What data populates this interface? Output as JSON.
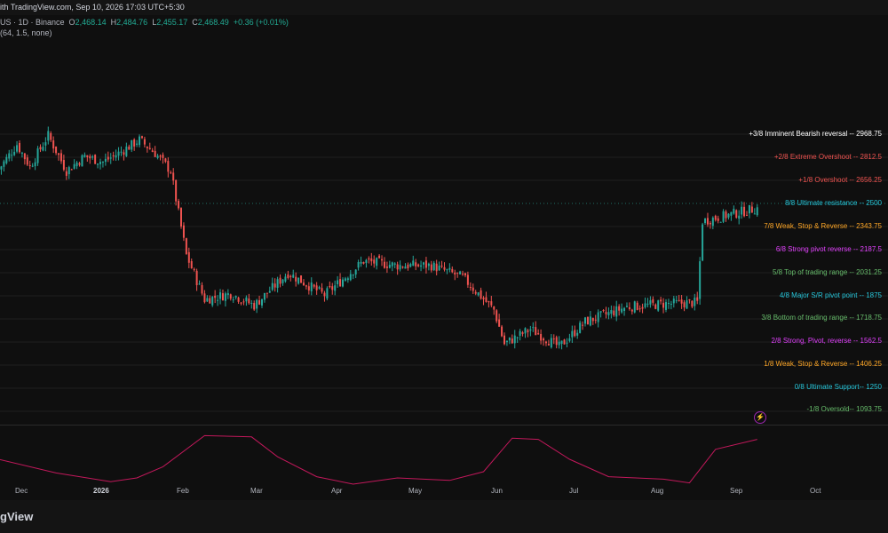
{
  "header": {
    "caption": "ith TradingView.com, Sep 10, 2026 17:03 UTC+5:30"
  },
  "legend": {
    "symbol": "US · 1D · Binance",
    "o_label": "O",
    "o_value": "2,468.14",
    "h_label": "H",
    "h_value": "2,484.76",
    "l_label": "L",
    "l_value": "2,455.17",
    "c_label": "C",
    "c_value": "2,468.49",
    "change": "+0.36 (+0.01%)",
    "indicator": "(64, 1.5, none)"
  },
  "footer": {
    "brand": "gView"
  },
  "levels": [
    {
      "text": "+3/8 Imminent Bearish reversal -- 2968.75",
      "color": "#ffffff"
    },
    {
      "text": "+2/8 Extreme Overshoot -- 2812.5",
      "color": "#ef5350"
    },
    {
      "text": "+1/8 Overshoot -- 2656.25",
      "color": "#ef5350"
    },
    {
      "text": "8/8 Ultimate resistance -- 2500",
      "color": "#26c6da"
    },
    {
      "text": "7/8 Weak, Stop & Reverse -- 2343.75",
      "color": "#ffa726"
    },
    {
      "text": "6/8 Strong pivot reverse -- 2187.5",
      "color": "#e040fb"
    },
    {
      "text": "5/8 Top of trading range -- 2031.25",
      "color": "#66bb6a"
    },
    {
      "text": "4/8 Major S/R pivot point -- 1875",
      "color": "#26c6da"
    },
    {
      "text": "3/8 Bottom of trading range -- 1718.75",
      "color": "#66bb6a"
    },
    {
      "text": "2/8 Strong, Pivot, reverse -- 1562.5",
      "color": "#e040fb"
    },
    {
      "text": "1/8 Weak, Stop & Reverse -- 1406.25",
      "color": "#ffa726"
    },
    {
      "text": "0/8 Ultimate Support-- 1250",
      "color": "#26c6da"
    },
    {
      "text": "-1/8 Oversold-- 1093.75",
      "color": "#66bb6a"
    }
  ],
  "x_axis": {
    "labels": [
      "Dec",
      "2026",
      "Feb",
      "Mar",
      "Apr",
      "May",
      "Jun",
      "Jul",
      "Aug",
      "Sep",
      "Oct"
    ]
  },
  "colors": {
    "up": "#26a69a",
    "down": "#ef5350",
    "oscillator": "#c2185b",
    "background": "#0f0f0f"
  },
  "chart_data": {
    "type": "candlestick",
    "xlabel": "",
    "ylabel": "",
    "ylim": [
      1000,
      3050
    ],
    "interval": "1D",
    "close_path": [
      [
        "Nov 23, 2025",
        2730
      ],
      [
        "Nov 30, 2025",
        2900
      ],
      [
        "Dec 5, 2025",
        2750
      ],
      [
        "Dec 12, 2025",
        2960
      ],
      [
        "Dec 19, 2025",
        2720
      ],
      [
        "Dec 26, 2025",
        2820
      ],
      [
        "Jan 2, 2026",
        2780
      ],
      [
        "Jan 9, 2026",
        2850
      ],
      [
        "Jan 16, 2026",
        2930
      ],
      [
        "Jan 22, 2026",
        2840
      ],
      [
        "Jan 28, 2026",
        2720
      ],
      [
        "Feb 3, 2026",
        2150
      ],
      [
        "Feb 10, 2026",
        1850
      ],
      [
        "Feb 20, 2026",
        1890
      ],
      [
        "Mar 1, 2026",
        1810
      ],
      [
        "Mar 14, 2026",
        2030
      ],
      [
        "Mar 28, 2026",
        1880
      ],
      [
        "Apr 12, 2026",
        2110
      ],
      [
        "Apr 25, 2026",
        2080
      ],
      [
        "May 8, 2026",
        2080
      ],
      [
        "May 20, 2026",
        2000
      ],
      [
        "Jun 1, 2026",
        1780
      ],
      [
        "Jun 5, 2026",
        1550
      ],
      [
        "Jun 15, 2026",
        1650
      ],
      [
        "Jun 26, 2026",
        1530
      ],
      [
        "Jul 6, 2026",
        1700
      ],
      [
        "Jul 22, 2026",
        1800
      ],
      [
        "Aug 5, 2026",
        1820
      ],
      [
        "Aug 18, 2026",
        1830
      ],
      [
        "Aug 20, 2026",
        2380
      ],
      [
        "Sep 10, 2026",
        2468.49
      ]
    ],
    "last_bar": {
      "open": 2468.14,
      "high": 2484.76,
      "low": 2455.17,
      "close": 2468.49
    },
    "murrey_levels": [
      2968.75,
      2812.5,
      2656.25,
      2500,
      2343.75,
      2187.5,
      2031.25,
      1875,
      1718.75,
      1562.5,
      1406.25,
      1250,
      1093.75
    ],
    "oscillator_path": [
      [
        "Nov 23, 2025",
        0.0
      ],
      [
        "Dec 15, 2025",
        -0.55
      ],
      [
        "Jan 5, 2026",
        -0.9
      ],
      [
        "Jan 15, 2026",
        -0.75
      ],
      [
        "Jan 25, 2026",
        -0.3
      ],
      [
        "Feb 10, 2026",
        0.95
      ],
      [
        "Feb 28, 2026",
        0.9
      ],
      [
        "Mar 10, 2026",
        0.1
      ],
      [
        "Mar 25, 2026",
        -0.7
      ],
      [
        "Apr 8, 2026",
        -1.0
      ],
      [
        "Apr 25, 2026",
        -0.75
      ],
      [
        "May 15, 2026",
        -0.85
      ],
      [
        "May 28, 2026",
        -0.5
      ],
      [
        "Jun 8, 2026",
        0.85
      ],
      [
        "Jun 18, 2026",
        0.8
      ],
      [
        "Jun 30, 2026",
        0.0
      ],
      [
        "Jul 15, 2026",
        -0.7
      ],
      [
        "Aug 5, 2026",
        -0.8
      ],
      [
        "Aug 15, 2026",
        -0.95
      ],
      [
        "Aug 25, 2026",
        0.4
      ],
      [
        "Sep 10, 2026",
        0.8
      ]
    ]
  }
}
